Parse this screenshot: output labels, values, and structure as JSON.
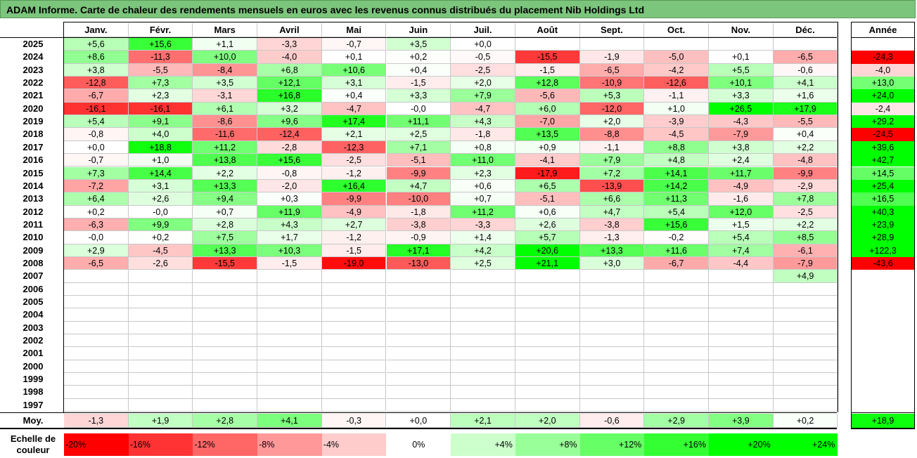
{
  "title": "ADAM Informe. Carte de chaleur des rendements mensuels en euros avec les revenus connus distribués du placement Nib Holdings Ltd",
  "chart_data": {
    "type": "heatmap",
    "months": [
      "Janv.",
      "Févr.",
      "Mars",
      "Avril",
      "Mai",
      "Juin",
      "Juil.",
      "Août",
      "Sept.",
      "Oct.",
      "Nov.",
      "Déc."
    ],
    "year_header": "Année",
    "rows": [
      {
        "year": "2025",
        "values": [
          "+5,6",
          "+15,6",
          "+1,1",
          "-3,3",
          "-0,7",
          "+3,5",
          "+0,0",
          "",
          "",
          "",
          "",
          ""
        ],
        "annual": ""
      },
      {
        "year": "2024",
        "values": [
          "+8,6",
          "-11,3",
          "+10,0",
          "-4,0",
          "+0,1",
          "+0,2",
          "-0,5",
          "-15,5",
          "-1,9",
          "-5,0",
          "+0,1",
          "-6,5"
        ],
        "annual": "-24,3"
      },
      {
        "year": "2023",
        "values": [
          "+3,8",
          "-5,5",
          "-8,4",
          "+6,8",
          "+10,6",
          "+0,4",
          "-2,5",
          "-1,5",
          "-6,5",
          "-4,2",
          "+5,5",
          "-0,6"
        ],
        "annual": "-4,0"
      },
      {
        "year": "2022",
        "values": [
          "-12,8",
          "+7,3",
          "+3,5",
          "+12,1",
          "+3,1",
          "-1,5",
          "+2,0",
          "+12,8",
          "-10,9",
          "-12,6",
          "+10,1",
          "+4,1"
        ],
        "annual": "+13,0"
      },
      {
        "year": "2021",
        "values": [
          "-6,7",
          "+2,3",
          "-3,1",
          "+16,8",
          "+0,4",
          "+3,3",
          "+7,9",
          "-5,6",
          "+5,3",
          "-1,1",
          "+3,3",
          "+1,6"
        ],
        "annual": "+24,0"
      },
      {
        "year": "2020",
        "values": [
          "-16,1",
          "-16,1",
          "+6,1",
          "+3,2",
          "-4,7",
          "-0,0",
          "-4,7",
          "+6,0",
          "-12,0",
          "+1,0",
          "+26,5",
          "+17,9"
        ],
        "annual": "-2,4"
      },
      {
        "year": "2019",
        "values": [
          "+5,4",
          "+9,1",
          "-8,6",
          "+9,6",
          "+17,4",
          "+11,1",
          "+4,3",
          "-7,0",
          "+2,0",
          "-3,9",
          "-4,3",
          "-5,5"
        ],
        "annual": "+29,2"
      },
      {
        "year": "2018",
        "values": [
          "-0,8",
          "+4,0",
          "-11,6",
          "-12,4",
          "+2,1",
          "+2,5",
          "-1,8",
          "+13,5",
          "-8,8",
          "-4,5",
          "-7,9",
          "+0,4"
        ],
        "annual": "-24,5"
      },
      {
        "year": "2017",
        "values": [
          "+0,0",
          "+18,8",
          "+11,2",
          "-2,8",
          "-12,3",
          "+7,1",
          "+0,8",
          "+0,9",
          "-1,1",
          "+8,8",
          "+3,8",
          "+2,2"
        ],
        "annual": "+39,6"
      },
      {
        "year": "2016",
        "values": [
          "-0,7",
          "+1,0",
          "+13,8",
          "+15,6",
          "-2,5",
          "-5,1",
          "+11,0",
          "-4,1",
          "+7,9",
          "+4,8",
          "+2,4",
          "-4,8"
        ],
        "annual": "+42,7"
      },
      {
        "year": "2015",
        "values": [
          "+7,3",
          "+14,4",
          "+2,2",
          "-0,8",
          "-1,2",
          "-9,9",
          "+2,3",
          "-17,9",
          "+7,2",
          "+14,1",
          "+11,7",
          "-9,9"
        ],
        "annual": "+14,5"
      },
      {
        "year": "2014",
        "values": [
          "-7,2",
          "+3,1",
          "+13,3",
          "-2,0",
          "+16,4",
          "+4,7",
          "+0,6",
          "+6,5",
          "-13,9",
          "+14,2",
          "-4,9",
          "-2,9"
        ],
        "annual": "+25,4"
      },
      {
        "year": "2013",
        "values": [
          "+6,4",
          "+2,6",
          "+9,4",
          "+0,3",
          "-9,9",
          "-10,0",
          "+0,7",
          "-5,1",
          "+6,6",
          "+11,3",
          "-1,6",
          "+7,8"
        ],
        "annual": "+16,5"
      },
      {
        "year": "2012",
        "values": [
          "+0,2",
          "-0,0",
          "+0,7",
          "+11,9",
          "-4,9",
          "-1,8",
          "+11,2",
          "+0,6",
          "+4,7",
          "+5,4",
          "+12,0",
          "-2,5"
        ],
        "annual": "+40,3"
      },
      {
        "year": "2011",
        "values": [
          "-6,3",
          "+9,9",
          "+2,8",
          "+4,3",
          "+2,7",
          "-3,8",
          "-3,3",
          "+2,6",
          "-3,8",
          "+15,6",
          "+1,5",
          "+2,2"
        ],
        "annual": "+23,9"
      },
      {
        "year": "2010",
        "values": [
          "-0,0",
          "+0,2",
          "+7,5",
          "+1,7",
          "-1,2",
          "-0,9",
          "+1,4",
          "+5,7",
          "-1,3",
          "-0,2",
          "+5,4",
          "+8,5"
        ],
        "annual": "+28,9"
      },
      {
        "year": "2009",
        "values": [
          "+2,9",
          "-4,5",
          "+13,3",
          "+10,3",
          "-1,5",
          "+17,1",
          "+4,2",
          "+20,6",
          "+13,3",
          "+11,6",
          "+7,4",
          "-6,1"
        ],
        "annual": "+122,3"
      },
      {
        "year": "2008",
        "values": [
          "-6,5",
          "-2,6",
          "-15,5",
          "-1,5",
          "-19,0",
          "-13,0",
          "+2,5",
          "+21,1",
          "+3,0",
          "-6,7",
          "-4,4",
          "-7,9"
        ],
        "annual": "-43,6"
      },
      {
        "year": "2007",
        "values": [
          "",
          "",
          "",
          "",
          "",
          "",
          "",
          "",
          "",
          "",
          "",
          "+4,9"
        ],
        "annual": ""
      },
      {
        "year": "2006",
        "values": [
          "",
          "",
          "",
          "",
          "",
          "",
          "",
          "",
          "",
          "",
          "",
          ""
        ],
        "annual": ""
      },
      {
        "year": "2005",
        "values": [
          "",
          "",
          "",
          "",
          "",
          "",
          "",
          "",
          "",
          "",
          "",
          ""
        ],
        "annual": ""
      },
      {
        "year": "2004",
        "values": [
          "",
          "",
          "",
          "",
          "",
          "",
          "",
          "",
          "",
          "",
          "",
          ""
        ],
        "annual": ""
      },
      {
        "year": "2003",
        "values": [
          "",
          "",
          "",
          "",
          "",
          "",
          "",
          "",
          "",
          "",
          "",
          ""
        ],
        "annual": ""
      },
      {
        "year": "2002",
        "values": [
          "",
          "",
          "",
          "",
          "",
          "",
          "",
          "",
          "",
          "",
          "",
          ""
        ],
        "annual": ""
      },
      {
        "year": "2001",
        "values": [
          "",
          "",
          "",
          "",
          "",
          "",
          "",
          "",
          "",
          "",
          "",
          ""
        ],
        "annual": ""
      },
      {
        "year": "2000",
        "values": [
          "",
          "",
          "",
          "",
          "",
          "",
          "",
          "",
          "",
          "",
          "",
          ""
        ],
        "annual": ""
      },
      {
        "year": "1999",
        "values": [
          "",
          "",
          "",
          "",
          "",
          "",
          "",
          "",
          "",
          "",
          "",
          ""
        ],
        "annual": ""
      },
      {
        "year": "1998",
        "values": [
          "",
          "",
          "",
          "",
          "",
          "",
          "",
          "",
          "",
          "",
          "",
          ""
        ],
        "annual": ""
      },
      {
        "year": "1997",
        "values": [
          "",
          "",
          "",
          "",
          "",
          "",
          "",
          "",
          "",
          "",
          "",
          ""
        ],
        "annual": ""
      }
    ],
    "average": {
      "label": "Moy.",
      "values": [
        "-1,3",
        "+1,9",
        "+2,8",
        "+4,1",
        "-0,3",
        "+0,0",
        "+2,1",
        "+2,0",
        "-0,6",
        "+2,9",
        "+3,9",
        "+0,2"
      ],
      "annual": "+18,9"
    },
    "color_scale": {
      "label_line1": "Echelle de",
      "label_line2": "couleur",
      "stops": [
        "-20%",
        "-16%",
        "-12%",
        "-8%",
        "-4%",
        "0%",
        "+4%",
        "+8%",
        "+12%",
        "+16%",
        "+20%",
        "+24%"
      ],
      "negative_color": "#ff0000",
      "positive_color": "#00ff00",
      "neutral_color": "#ffffff"
    }
  }
}
